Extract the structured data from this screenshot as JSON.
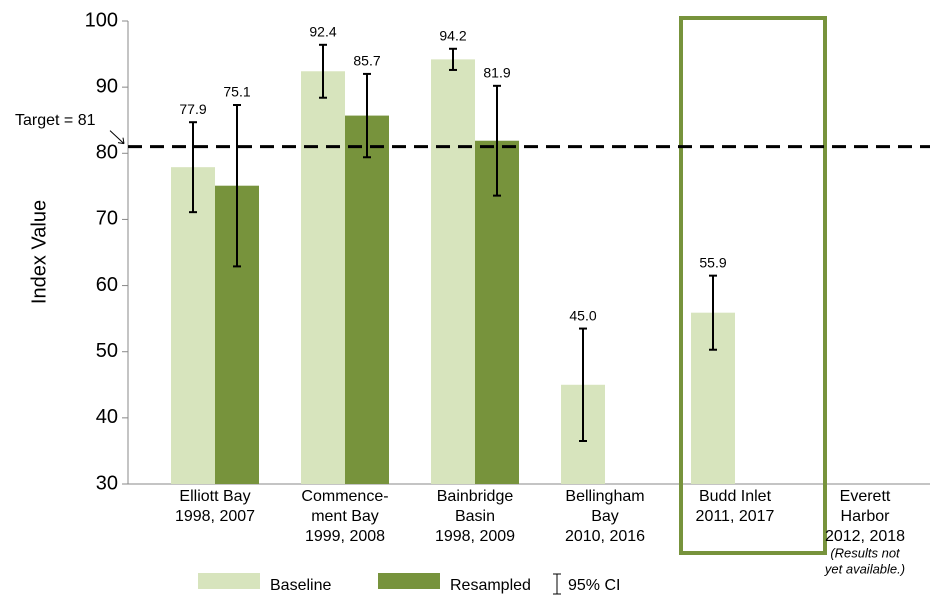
{
  "chart_data": {
    "type": "bar",
    "y_label": "Index Value",
    "categories": [
      [
        "Elliott Bay",
        "1998, 2007"
      ],
      [
        "Commence-",
        "ment Bay",
        "1999, 2008"
      ],
      [
        "Bainbridge",
        "Basin",
        "1998, 2009"
      ],
      [
        "Bellingham",
        "Bay",
        "2010, 2016"
      ],
      [
        "Budd Inlet",
        "2011, 2017"
      ],
      [
        "Everett",
        "Harbor",
        "2012, 2018"
      ]
    ],
    "category_notes": [
      null,
      null,
      null,
      null,
      null,
      [
        "(Results not",
        "yet available.)"
      ]
    ],
    "series": [
      {
        "name": "Baseline",
        "color": "#d7e4bd",
        "values": [
          77.9,
          92.4,
          94.2,
          45.0,
          55.9,
          null
        ],
        "value_labels": [
          "77.9",
          "92.4",
          "94.2",
          "45.0",
          "55.9",
          null
        ],
        "errors": [
          6.8,
          4.0,
          1.6,
          8.5,
          5.6,
          null
        ]
      },
      {
        "name": "Resampled",
        "color": "#77933c",
        "values": [
          75.1,
          85.7,
          81.9,
          null,
          null,
          null
        ],
        "value_labels": [
          "75.1",
          "85.7",
          "81.9",
          null,
          null,
          null
        ],
        "errors": [
          12.2,
          6.3,
          8.3,
          null,
          null,
          null
        ]
      }
    ],
    "error_legend": "95% CI",
    "target": {
      "value": 81,
      "label": "Target = 81"
    },
    "highlight_category": 4,
    "highlight_color": "#77933c",
    "ylim": [
      30,
      100
    ],
    "yticks": [
      30,
      40,
      50,
      60,
      70,
      80,
      90,
      100
    ],
    "grid": false
  }
}
